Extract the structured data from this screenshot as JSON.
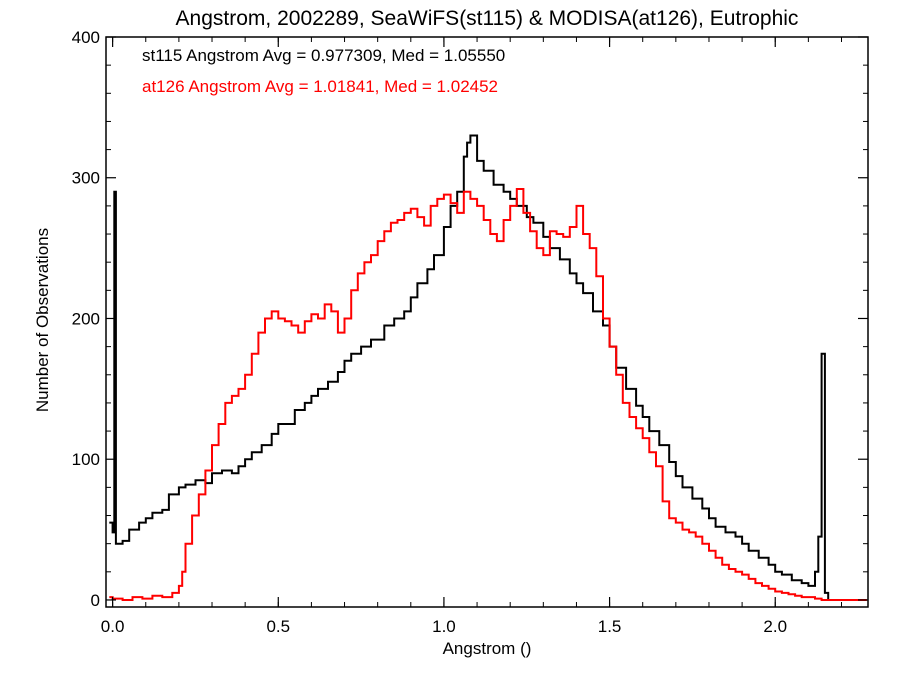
{
  "chart_data": {
    "type": "line",
    "title": "Angstrom, 2002289, SeaWiFS(st115) & MODISA(at126), Eutrophic",
    "xlabel": "Angstrom ()",
    "ylabel": "Number of Observations",
    "xlim": [
      -0.02,
      2.28
    ],
    "ylim": [
      -5,
      400
    ],
    "xticks": [
      0.0,
      0.5,
      1.0,
      1.5,
      2.0
    ],
    "xtick_labels": [
      "0.0",
      "0.5",
      "1.0",
      "1.5",
      "2.0"
    ],
    "yticks": [
      0,
      100,
      200,
      300,
      400
    ],
    "ytick_labels": [
      "0",
      "100",
      "200",
      "300",
      "400"
    ],
    "grid": false,
    "annotations": [
      {
        "text": "st115 Angstrom Avg = 0.977309, Med = 1.05550",
        "color": "#000000"
      },
      {
        "text": "at126 Angstrom Avg = 1.01841, Med = 1.02452",
        "color": "#ff0000"
      }
    ],
    "series": [
      {
        "color": "#000000",
        "step": true,
        "points": [
          [
            -0.01,
            55
          ],
          [
            0.0,
            48
          ],
          [
            0.005,
            290
          ],
          [
            0.01,
            40
          ],
          [
            0.03,
            42
          ],
          [
            0.05,
            50
          ],
          [
            0.08,
            55
          ],
          [
            0.1,
            58
          ],
          [
            0.12,
            62
          ],
          [
            0.15,
            64
          ],
          [
            0.17,
            75
          ],
          [
            0.2,
            80
          ],
          [
            0.22,
            82
          ],
          [
            0.25,
            85
          ],
          [
            0.28,
            83
          ],
          [
            0.3,
            90
          ],
          [
            0.33,
            92
          ],
          [
            0.36,
            90
          ],
          [
            0.38,
            95
          ],
          [
            0.4,
            100
          ],
          [
            0.42,
            105
          ],
          [
            0.45,
            110
          ],
          [
            0.48,
            118
          ],
          [
            0.5,
            125
          ],
          [
            0.52,
            125
          ],
          [
            0.55,
            135
          ],
          [
            0.58,
            140
          ],
          [
            0.6,
            145
          ],
          [
            0.62,
            150
          ],
          [
            0.65,
            155
          ],
          [
            0.68,
            162
          ],
          [
            0.7,
            170
          ],
          [
            0.72,
            175
          ],
          [
            0.75,
            180
          ],
          [
            0.78,
            185
          ],
          [
            0.8,
            185
          ],
          [
            0.82,
            195
          ],
          [
            0.85,
            200
          ],
          [
            0.88,
            205
          ],
          [
            0.9,
            215
          ],
          [
            0.92,
            225
          ],
          [
            0.95,
            235
          ],
          [
            0.97,
            245
          ],
          [
            1.0,
            265
          ],
          [
            1.02,
            280
          ],
          [
            1.04,
            290
          ],
          [
            1.06,
            315
          ],
          [
            1.07,
            325
          ],
          [
            1.08,
            330
          ],
          [
            1.1,
            312
          ],
          [
            1.12,
            305
          ],
          [
            1.15,
            295
          ],
          [
            1.18,
            290
          ],
          [
            1.2,
            285
          ],
          [
            1.22,
            280
          ],
          [
            1.25,
            272
          ],
          [
            1.27,
            268
          ],
          [
            1.3,
            258
          ],
          [
            1.32,
            250
          ],
          [
            1.35,
            242
          ],
          [
            1.38,
            232
          ],
          [
            1.4,
            225
          ],
          [
            1.42,
            218
          ],
          [
            1.45,
            205
          ],
          [
            1.48,
            195
          ],
          [
            1.5,
            180
          ],
          [
            1.52,
            165
          ],
          [
            1.55,
            150
          ],
          [
            1.58,
            138
          ],
          [
            1.6,
            130
          ],
          [
            1.62,
            120
          ],
          [
            1.65,
            110
          ],
          [
            1.68,
            98
          ],
          [
            1.7,
            88
          ],
          [
            1.72,
            80
          ],
          [
            1.75,
            72
          ],
          [
            1.78,
            65
          ],
          [
            1.8,
            58
          ],
          [
            1.82,
            52
          ],
          [
            1.85,
            48
          ],
          [
            1.88,
            45
          ],
          [
            1.9,
            40
          ],
          [
            1.92,
            35
          ],
          [
            1.95,
            30
          ],
          [
            1.98,
            25
          ],
          [
            2.0,
            20
          ],
          [
            2.02,
            18
          ],
          [
            2.05,
            14
          ],
          [
            2.08,
            12
          ],
          [
            2.1,
            10
          ],
          [
            2.12,
            20
          ],
          [
            2.13,
            45
          ],
          [
            2.14,
            175
          ],
          [
            2.15,
            5
          ],
          [
            2.16,
            0
          ],
          [
            2.2,
            0
          ],
          [
            2.27,
            0
          ]
        ]
      },
      {
        "color": "#ff0000",
        "step": true,
        "points": [
          [
            -0.01,
            2
          ],
          [
            0.0,
            1
          ],
          [
            0.03,
            0
          ],
          [
            0.06,
            2
          ],
          [
            0.09,
            1
          ],
          [
            0.12,
            3
          ],
          [
            0.15,
            2
          ],
          [
            0.18,
            5
          ],
          [
            0.2,
            10
          ],
          [
            0.21,
            20
          ],
          [
            0.22,
            40
          ],
          [
            0.24,
            60
          ],
          [
            0.26,
            75
          ],
          [
            0.28,
            92
          ],
          [
            0.3,
            110
          ],
          [
            0.32,
            125
          ],
          [
            0.34,
            140
          ],
          [
            0.36,
            145
          ],
          [
            0.38,
            150
          ],
          [
            0.4,
            160
          ],
          [
            0.42,
            175
          ],
          [
            0.44,
            190
          ],
          [
            0.46,
            200
          ],
          [
            0.48,
            205
          ],
          [
            0.5,
            200
          ],
          [
            0.52,
            198
          ],
          [
            0.54,
            195
          ],
          [
            0.56,
            190
          ],
          [
            0.58,
            198
          ],
          [
            0.6,
            203
          ],
          [
            0.62,
            200
          ],
          [
            0.64,
            210
          ],
          [
            0.66,
            205
          ],
          [
            0.68,
            190
          ],
          [
            0.7,
            200
          ],
          [
            0.72,
            220
          ],
          [
            0.74,
            232
          ],
          [
            0.76,
            240
          ],
          [
            0.78,
            245
          ],
          [
            0.8,
            255
          ],
          [
            0.82,
            262
          ],
          [
            0.84,
            268
          ],
          [
            0.86,
            270
          ],
          [
            0.88,
            275
          ],
          [
            0.9,
            278
          ],
          [
            0.92,
            272
          ],
          [
            0.94,
            266
          ],
          [
            0.96,
            280
          ],
          [
            0.98,
            285
          ],
          [
            1.0,
            288
          ],
          [
            1.02,
            282
          ],
          [
            1.04,
            275
          ],
          [
            1.06,
            290
          ],
          [
            1.08,
            285
          ],
          [
            1.1,
            280
          ],
          [
            1.12,
            270
          ],
          [
            1.14,
            260
          ],
          [
            1.16,
            255
          ],
          [
            1.18,
            270
          ],
          [
            1.2,
            280
          ],
          [
            1.22,
            292
          ],
          [
            1.24,
            275
          ],
          [
            1.26,
            262
          ],
          [
            1.28,
            250
          ],
          [
            1.3,
            245
          ],
          [
            1.32,
            262
          ],
          [
            1.34,
            260
          ],
          [
            1.36,
            258
          ],
          [
            1.38,
            265
          ],
          [
            1.4,
            280
          ],
          [
            1.42,
            260
          ],
          [
            1.44,
            250
          ],
          [
            1.46,
            230
          ],
          [
            1.48,
            200
          ],
          [
            1.5,
            180
          ],
          [
            1.52,
            160
          ],
          [
            1.54,
            140
          ],
          [
            1.56,
            130
          ],
          [
            1.58,
            122
          ],
          [
            1.6,
            115
          ],
          [
            1.62,
            105
          ],
          [
            1.64,
            95
          ],
          [
            1.66,
            70
          ],
          [
            1.68,
            58
          ],
          [
            1.7,
            55
          ],
          [
            1.72,
            50
          ],
          [
            1.74,
            48
          ],
          [
            1.76,
            45
          ],
          [
            1.78,
            40
          ],
          [
            1.8,
            35
          ],
          [
            1.82,
            30
          ],
          [
            1.84,
            25
          ],
          [
            1.86,
            22
          ],
          [
            1.88,
            20
          ],
          [
            1.9,
            18
          ],
          [
            1.92,
            15
          ],
          [
            1.94,
            12
          ],
          [
            1.96,
            10
          ],
          [
            1.98,
            8
          ],
          [
            2.0,
            6
          ],
          [
            2.02,
            5
          ],
          [
            2.04,
            4
          ],
          [
            2.06,
            3
          ],
          [
            2.08,
            2
          ],
          [
            2.1,
            2
          ],
          [
            2.12,
            1
          ],
          [
            2.14,
            0
          ],
          [
            2.16,
            0
          ],
          [
            2.2,
            0
          ],
          [
            2.27,
            0
          ]
        ]
      }
    ]
  }
}
